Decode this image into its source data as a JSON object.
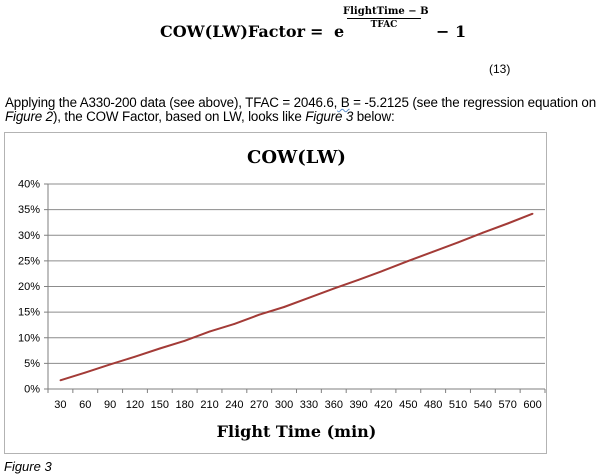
{
  "equation": {
    "lhs": "COW(LW)Factor",
    "equals": "=",
    "base": "e",
    "numerator": "FlightTime − B",
    "denominator": "TFAC",
    "tail": "− 1",
    "number": "(13)"
  },
  "paragraph": {
    "part1": "Applying the A330-200 data (see above), TFAC = 2046.6,",
    "squiggle": " B",
    "part2": " = -5.2125 (see the regression equation on ",
    "fig_ref1": "Figure 2",
    "part3": "), the COW Factor, based on LW, looks like ",
    "fig_ref2": "Figure 3",
    "part4": " below:"
  },
  "caption": "Figure 3",
  "colors": {
    "line": "#a33b37",
    "grid": "#8c8c8c",
    "border": "#b3b3b3"
  },
  "chart_data": {
    "type": "line",
    "title": "COW(LW)",
    "xlabel": "Flight Time (min)",
    "ylabel": "",
    "categories": [
      30,
      60,
      90,
      120,
      150,
      180,
      210,
      240,
      270,
      300,
      330,
      360,
      390,
      420,
      450,
      480,
      510,
      540,
      570,
      600
    ],
    "ytick_labels": [
      "0%",
      "5%",
      "10%",
      "15%",
      "20%",
      "25%",
      "30%",
      "35%",
      "40%"
    ],
    "ylim": [
      0,
      40
    ],
    "yunit": "%",
    "grid": true,
    "legend": "none",
    "series": [
      {
        "values": [
          1.7,
          3.2,
          4.8,
          6.3,
          7.9,
          9.4,
          11.2,
          12.7,
          14.5,
          16.0,
          17.8,
          19.6,
          21.3,
          23.1,
          25.0,
          26.8,
          28.6,
          30.5,
          32.3,
          34.2
        ]
      }
    ]
  }
}
